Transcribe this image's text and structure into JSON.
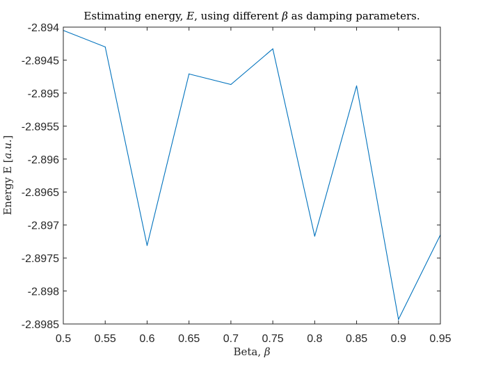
{
  "chart_data": {
    "type": "line",
    "title": "Estimating energy, E, using different β as damping parameters.",
    "title_parts": {
      "before_e": "Estimating energy, ",
      "e_symbol": "E",
      "middle": ", using different ",
      "beta_symbol": "β",
      "after": " as damping parameters."
    },
    "xlabel": "Beta, β",
    "xlabel_parts": {
      "text": "Beta, ",
      "symbol": "β"
    },
    "ylabel": "Energy E [a.u.]",
    "ylabel_parts": {
      "text": "Energy E [",
      "unit": "a.u.",
      "close": "]"
    },
    "x": [
      0.5,
      0.55,
      0.6,
      0.65,
      0.7,
      0.75,
      0.8,
      0.85,
      0.9,
      0.95
    ],
    "series": [
      {
        "values": [
          -2.89405,
          -2.8943,
          -2.89731,
          -2.89471,
          -2.89487,
          -2.89433,
          -2.89717,
          -2.89489,
          -2.89843,
          -2.89715
        ],
        "color": "#0072BD"
      }
    ],
    "xlim": [
      0.5,
      0.95
    ],
    "ylim": [
      -2.8985,
      -2.894
    ],
    "xticks": [
      0.5,
      0.55,
      0.6,
      0.65,
      0.7,
      0.75,
      0.8,
      0.85,
      0.9,
      0.95
    ],
    "xtick_labels": [
      "0.5",
      "0.55",
      "0.6",
      "0.65",
      "0.7",
      "0.75",
      "0.8",
      "0.85",
      "0.9",
      "0.95"
    ],
    "yticks": [
      -2.894,
      -2.8945,
      -2.895,
      -2.8955,
      -2.896,
      -2.8965,
      -2.897,
      -2.8975,
      -2.898,
      -2.8985
    ],
    "ytick_labels": [
      "-2.894",
      "-2.8945",
      "-2.895",
      "-2.8955",
      "-2.896",
      "-2.8965",
      "-2.897",
      "-2.8975",
      "-2.898",
      "-2.8985"
    ],
    "grid": false,
    "box": true
  }
}
